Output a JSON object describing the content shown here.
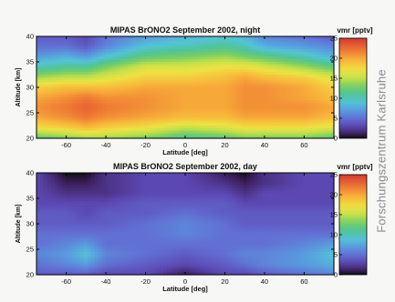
{
  "side_caption": "Forschungszentrum Karlsruhe",
  "chart_data": [
    {
      "type": "heatmap",
      "title": "MIPAS BrONO2  September 2002, night",
      "xlabel": "Latitude [deg]",
      "ylabel": "Altitude [km]",
      "xlim": [
        -75,
        75
      ],
      "ylim": [
        20,
        40
      ],
      "xticks": [
        -60,
        -40,
        -20,
        0,
        20,
        40,
        60
      ],
      "yticks": [
        20,
        25,
        30,
        35,
        40
      ],
      "colorbar": {
        "label": "vmr [pptv]",
        "range": [
          0,
          25
        ],
        "ticks": [
          0,
          5,
          10,
          15,
          20,
          25
        ]
      },
      "lat": [
        -75,
        -60,
        -50,
        -40,
        -20,
        0,
        20,
        30,
        40,
        60,
        75
      ],
      "alt": [
        20,
        22,
        24,
        26,
        28,
        30,
        32,
        34,
        36,
        38,
        40
      ],
      "values": [
        [
          12,
          13,
          14,
          14,
          13,
          11,
          12,
          13,
          13,
          13,
          12
        ],
        [
          17,
          18,
          19,
          18,
          17,
          15,
          16,
          17,
          17,
          17,
          16
        ],
        [
          20,
          21,
          22,
          21,
          20,
          19,
          19,
          20,
          20,
          20,
          19
        ],
        [
          21,
          22,
          23,
          22,
          21,
          20,
          20,
          21,
          21,
          21,
          20
        ],
        [
          20,
          21,
          22,
          21,
          21,
          20,
          20,
          21,
          21,
          20,
          19
        ],
        [
          18,
          19,
          19,
          19,
          20,
          20,
          20,
          21,
          21,
          20,
          18
        ],
        [
          14,
          15,
          15,
          16,
          18,
          18,
          19,
          20,
          19,
          18,
          16
        ],
        [
          10,
          11,
          11,
          13,
          16,
          16,
          17,
          17,
          16,
          14,
          12
        ],
        [
          7,
          8,
          7,
          9,
          12,
          13,
          14,
          13,
          12,
          10,
          8
        ],
        [
          5,
          5,
          4,
          6,
          9,
          10,
          11,
          10,
          8,
          7,
          6
        ],
        [
          4,
          4,
          3,
          5,
          7,
          8,
          9,
          8,
          6,
          5,
          4
        ]
      ]
    },
    {
      "type": "heatmap",
      "title": "MIPAS BrONO2  September 2002, day",
      "xlabel": "Latitude [deg]",
      "ylabel": "Altitude [km]",
      "xlim": [
        -75,
        75
      ],
      "ylim": [
        20,
        40
      ],
      "xticks": [
        -60,
        -40,
        -20,
        0,
        20,
        40,
        60
      ],
      "yticks": [
        20,
        25,
        30,
        35,
        40
      ],
      "colorbar": {
        "label": "vmr [pptv]",
        "range": [
          0,
          25
        ],
        "ticks": [
          0,
          5,
          10,
          15,
          20,
          25
        ]
      },
      "lat": [
        -75,
        -60,
        -50,
        -40,
        -20,
        0,
        20,
        30,
        40,
        60,
        75
      ],
      "alt": [
        20,
        22,
        24,
        26,
        28,
        30,
        32,
        34,
        36,
        38,
        40
      ],
      "values": [
        [
          4,
          4,
          4,
          3,
          3,
          1,
          3,
          3,
          4,
          5,
          6
        ],
        [
          5,
          6,
          7,
          5,
          4,
          3,
          4,
          5,
          6,
          7,
          8
        ],
        [
          6,
          7,
          9,
          6,
          5,
          4,
          5,
          6,
          6,
          7,
          9
        ],
        [
          5,
          6,
          7,
          5,
          5,
          5,
          5,
          5,
          5,
          6,
          7
        ],
        [
          5,
          5,
          5,
          5,
          5,
          6,
          5,
          5,
          5,
          5,
          5
        ],
        [
          4,
          4,
          4,
          4,
          5,
          6,
          5,
          4,
          4,
          4,
          4
        ],
        [
          4,
          4,
          3,
          4,
          4,
          5,
          4,
          4,
          4,
          4,
          4
        ],
        [
          3,
          3,
          3,
          3,
          4,
          4,
          4,
          3,
          3,
          3,
          3
        ],
        [
          3,
          2,
          2,
          2,
          3,
          3,
          3,
          2,
          3,
          3,
          3
        ],
        [
          3,
          1,
          1,
          2,
          3,
          3,
          2,
          1,
          2,
          3,
          3
        ],
        [
          3,
          0,
          0,
          2,
          3,
          3,
          1,
          0,
          2,
          3,
          3
        ]
      ]
    }
  ]
}
